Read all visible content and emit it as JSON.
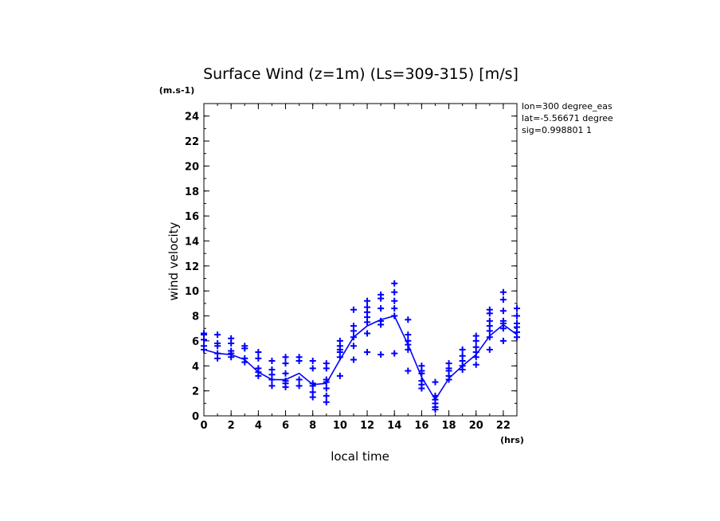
{
  "chart_data": {
    "type": "line",
    "title": "Surface Wind (z=1m) (Ls=309-315) [m/s]",
    "y_unit": "(m.s-1)",
    "x_unit": "(hrs)",
    "xlabel": "local time",
    "ylabel": "wind velocity",
    "xlim": [
      0,
      23
    ],
    "ylim": [
      0,
      25
    ],
    "x_ticks": [
      0,
      2,
      4,
      6,
      8,
      10,
      12,
      14,
      16,
      18,
      20,
      22
    ],
    "y_ticks": [
      0,
      2,
      4,
      6,
      8,
      10,
      12,
      14,
      16,
      18,
      20,
      22,
      24
    ],
    "info_lines": [
      "lon=300 degree_eas",
      "lat=-5.56671 degree",
      "sig=0.998801 1"
    ],
    "mean_series": {
      "x": [
        0,
        1,
        2,
        3,
        4,
        5,
        6,
        7,
        8,
        9,
        10,
        11,
        12,
        13,
        14,
        15,
        16,
        17,
        18,
        19,
        20,
        21,
        22,
        23
      ],
      "y": [
        5.3,
        5.0,
        4.9,
        4.5,
        3.5,
        2.9,
        2.9,
        3.4,
        2.5,
        2.6,
        4.5,
        6.3,
        7.2,
        7.7,
        8.0,
        5.7,
        3.1,
        1.3,
        3.0,
        4.0,
        4.9,
        6.4,
        7.3,
        6.5
      ]
    },
    "scatter_points": [
      [
        0,
        6.6
      ],
      [
        0,
        6.5
      ],
      [
        0,
        6.1
      ],
      [
        0,
        5.6
      ],
      [
        0,
        5.3
      ],
      [
        1,
        6.5
      ],
      [
        1,
        5.8
      ],
      [
        1,
        5.6
      ],
      [
        1,
        5.0
      ],
      [
        1,
        4.6
      ],
      [
        2,
        6.2
      ],
      [
        2,
        5.8
      ],
      [
        2,
        5.2
      ],
      [
        2,
        5.0
      ],
      [
        2,
        4.7
      ],
      [
        3,
        5.6
      ],
      [
        3,
        5.4
      ],
      [
        3,
        4.6
      ],
      [
        3,
        4.3
      ],
      [
        4,
        5.1
      ],
      [
        4,
        4.6
      ],
      [
        4,
        3.8
      ],
      [
        4,
        3.5
      ],
      [
        4,
        3.2
      ],
      [
        5,
        4.4
      ],
      [
        5,
        3.7
      ],
      [
        5,
        3.3
      ],
      [
        5,
        2.9
      ],
      [
        5,
        2.4
      ],
      [
        6,
        4.7
      ],
      [
        6,
        4.2
      ],
      [
        6,
        3.4
      ],
      [
        6,
        2.8
      ],
      [
        6,
        2.6
      ],
      [
        6,
        2.3
      ],
      [
        7,
        4.7
      ],
      [
        7,
        4.4
      ],
      [
        7,
        2.9
      ],
      [
        7,
        2.4
      ],
      [
        8,
        4.4
      ],
      [
        8,
        3.8
      ],
      [
        8,
        2.6
      ],
      [
        8,
        2.4
      ],
      [
        8,
        1.9
      ],
      [
        8,
        1.5
      ],
      [
        9,
        4.2
      ],
      [
        9,
        3.8
      ],
      [
        9,
        2.9
      ],
      [
        9,
        2.7
      ],
      [
        9,
        2.2
      ],
      [
        9,
        1.6
      ],
      [
        9,
        1.1
      ],
      [
        10,
        6.0
      ],
      [
        10,
        5.6
      ],
      [
        10,
        5.3
      ],
      [
        10,
        5.1
      ],
      [
        10,
        4.7
      ],
      [
        10,
        3.2
      ],
      [
        11,
        8.5
      ],
      [
        11,
        7.2
      ],
      [
        11,
        6.8
      ],
      [
        11,
        6.3
      ],
      [
        11,
        5.6
      ],
      [
        11,
        4.5
      ],
      [
        12,
        9.2
      ],
      [
        12,
        8.7
      ],
      [
        12,
        8.3
      ],
      [
        12,
        7.9
      ],
      [
        12,
        7.5
      ],
      [
        12,
        6.6
      ],
      [
        12,
        5.1
      ],
      [
        13,
        9.7
      ],
      [
        13,
        9.4
      ],
      [
        13,
        8.6
      ],
      [
        13,
        7.6
      ],
      [
        13,
        7.3
      ],
      [
        13,
        4.9
      ],
      [
        14,
        10.6
      ],
      [
        14,
        9.9
      ],
      [
        14,
        9.2
      ],
      [
        14,
        8.6
      ],
      [
        14,
        8.0
      ],
      [
        14,
        5.0
      ],
      [
        15,
        7.7
      ],
      [
        15,
        6.5
      ],
      [
        15,
        6.0
      ],
      [
        15,
        5.7
      ],
      [
        15,
        5.3
      ],
      [
        15,
        3.6
      ],
      [
        16,
        4.0
      ],
      [
        16,
        3.6
      ],
      [
        16,
        3.4
      ],
      [
        16,
        2.8
      ],
      [
        16,
        2.5
      ],
      [
        16,
        2.2
      ],
      [
        17,
        2.7
      ],
      [
        17,
        1.6
      ],
      [
        17,
        1.3
      ],
      [
        17,
        1.0
      ],
      [
        17,
        0.7
      ],
      [
        17,
        0.5
      ],
      [
        18,
        4.2
      ],
      [
        18,
        3.8
      ],
      [
        18,
        3.6
      ],
      [
        18,
        3.2
      ],
      [
        18,
        2.9
      ],
      [
        19,
        5.3
      ],
      [
        19,
        4.8
      ],
      [
        19,
        4.4
      ],
      [
        19,
        4.0
      ],
      [
        19,
        3.7
      ],
      [
        20,
        6.4
      ],
      [
        20,
        6.0
      ],
      [
        20,
        5.5
      ],
      [
        20,
        5.1
      ],
      [
        20,
        4.7
      ],
      [
        20,
        4.1
      ],
      [
        21,
        8.5
      ],
      [
        21,
        8.2
      ],
      [
        21,
        7.6
      ],
      [
        21,
        7.2
      ],
      [
        21,
        6.8
      ],
      [
        21,
        6.3
      ],
      [
        21,
        5.3
      ],
      [
        22,
        9.9
      ],
      [
        22,
        9.3
      ],
      [
        22,
        8.4
      ],
      [
        22,
        7.6
      ],
      [
        22,
        7.4
      ],
      [
        22,
        7.0
      ],
      [
        22,
        6.0
      ],
      [
        23,
        8.6
      ],
      [
        23,
        8.0
      ],
      [
        23,
        7.4
      ],
      [
        23,
        7.1
      ],
      [
        23,
        6.7
      ],
      [
        23,
        6.3
      ]
    ],
    "series_color": "#0000ff",
    "grid": false
  }
}
